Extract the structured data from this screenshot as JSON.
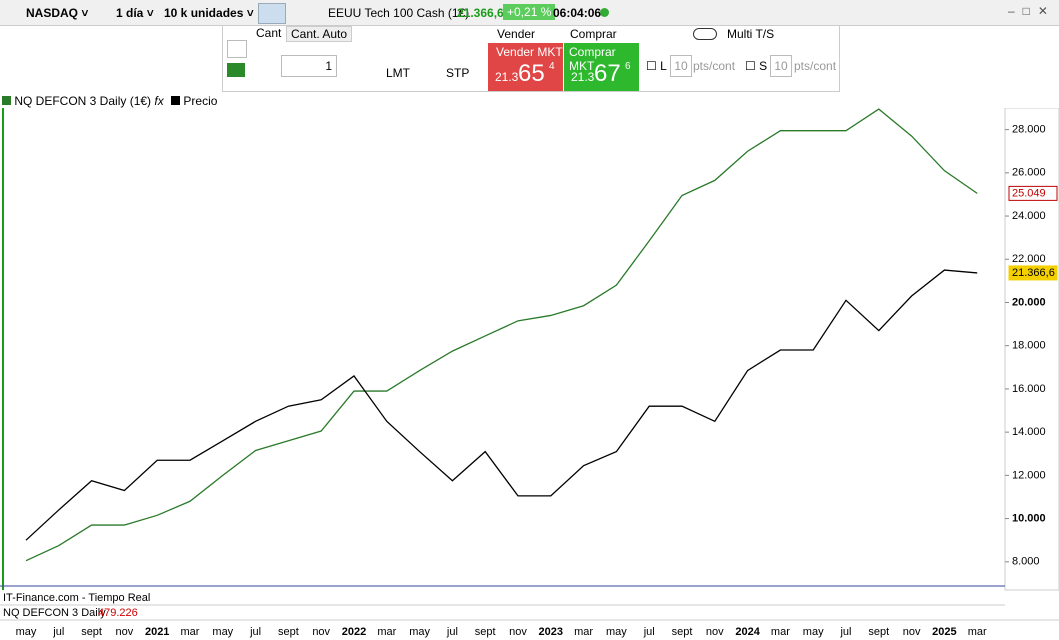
{
  "toolbar": {
    "symbol": "NASDAQ",
    "timeframe": "1 día",
    "units": "10 k unidades",
    "instrument": "EEUU Tech 100 Cash (1€)",
    "price": "21.366,6",
    "change": "+0,21 %",
    "time": "06:04:06"
  },
  "order_panel": {
    "cant": "Cant",
    "cant_auto": "Cant. Auto",
    "quantity": "1",
    "lmt": "LMT",
    "stp": "STP",
    "sell_label": "Vender",
    "buy_label": "Comprar",
    "sell_button": "Vender MKT",
    "buy_button": "Comprar MKT",
    "sell_prefix": "21.3",
    "sell_big": "65",
    "sell_small": "4",
    "buy_prefix": "21.3",
    "buy_big": "67",
    "buy_small": "6",
    "multi_ts": "Multi T/S",
    "l": "L",
    "s": "S",
    "l_pts": "10",
    "s_pts": "10",
    "pts_unit": "pts/cont"
  },
  "legend": {
    "indicator": "NQ DEFCON 3 Daily (1€)",
    "price": "Precio"
  },
  "footer": {
    "source": "IT-Finance.com - Tiempo Real",
    "indicator": "NQ DEFCON 3 Daily",
    "indicator_value": "479.226"
  },
  "chart_data": {
    "type": "line",
    "categories": [
      "may",
      "jul",
      "sept",
      "nov",
      "2021",
      "mar",
      "may",
      "jul",
      "sept",
      "nov",
      "2022",
      "mar",
      "may",
      "jul",
      "sept",
      "nov",
      "2023",
      "mar",
      "may",
      "jul",
      "sept",
      "nov",
      "2024",
      "mar",
      "may",
      "jul",
      "sept",
      "nov",
      "2025",
      "mar"
    ],
    "bold_categories": [
      "2021",
      "2022",
      "2023",
      "2024",
      "2025"
    ],
    "series": [
      {
        "name": "NQ DEFCON 3 Daily (1€)",
        "color": "#2a7a2a",
        "values": [
          8050,
          8750,
          9700,
          9700,
          10150,
          10800,
          12000,
          13150,
          13600,
          14050,
          15900,
          15900,
          16850,
          17750,
          18450,
          19150,
          19400,
          19850,
          20800,
          22850,
          24950,
          25650,
          27000,
          27950,
          27950,
          27950,
          28950,
          27700,
          26100,
          25049
        ]
      },
      {
        "name": "Precio",
        "color": "#000000",
        "values": [
          9000,
          10400,
          11750,
          11300,
          12700,
          12700,
          13600,
          14500,
          15200,
          15500,
          16600,
          14500,
          13100,
          11750,
          13100,
          11050,
          11050,
          12450,
          13100,
          15200,
          15200,
          14500,
          16850,
          17800,
          17800,
          20100,
          18700,
          20300,
          21500,
          21366.6
        ]
      }
    ],
    "last_labels": [
      {
        "value": 25049,
        "label": "25.049",
        "color": "#c00000"
      },
      {
        "value": 21366.6,
        "label": "21.366,6",
        "color": "#f5d000"
      }
    ],
    "ylim": [
      6000,
      29000
    ],
    "yticks": [
      {
        "value": 8000,
        "label": "8.000"
      },
      {
        "value": 10000,
        "label": "10.000"
      },
      {
        "value": 12000,
        "label": "12.000"
      },
      {
        "value": 14000,
        "label": "14.000"
      },
      {
        "value": 16000,
        "label": "16.000"
      },
      {
        "value": 18000,
        "label": "18.000"
      },
      {
        "value": 20000,
        "label": "20.000"
      },
      {
        "value": 22000,
        "label": "22.000"
      },
      {
        "value": 24000,
        "label": "24.000"
      },
      {
        "value": 26000,
        "label": "26.000"
      },
      {
        "value": 28000,
        "label": "28.000"
      }
    ],
    "bold_ticks": [
      10000,
      20000
    ]
  }
}
